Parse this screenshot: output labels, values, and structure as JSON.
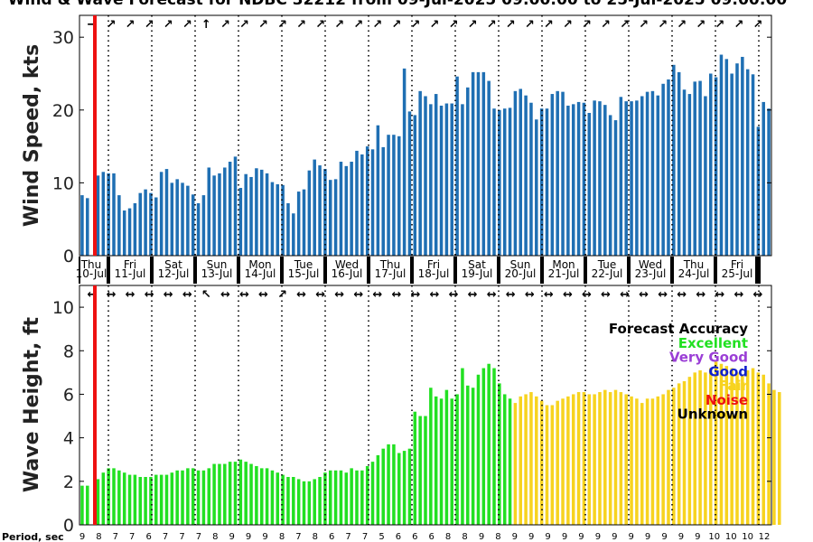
{
  "chart_data": [
    {
      "type": "bar",
      "title": "Wind & Wave Forecast for NDBC 32212 from 09-Jul-2025 09:00:00 to 25-Jul-2025 09:00:00",
      "ylabel": "Wind Speed, kts",
      "ylim": [
        0,
        33
      ],
      "yticks": [
        0,
        10,
        20,
        30
      ],
      "bar_color": "#1f6fb3",
      "day_labels": [
        {
          "dow": "Thu",
          "date": "10-Jul"
        },
        {
          "dow": "Fri",
          "date": "11-Jul"
        },
        {
          "dow": "Sat",
          "date": "12-Jul"
        },
        {
          "dow": "Sun",
          "date": "13-Jul"
        },
        {
          "dow": "Mon",
          "date": "14-Jul"
        },
        {
          "dow": "Tue",
          "date": "15-Jul"
        },
        {
          "dow": "Wed",
          "date": "16-Jul"
        },
        {
          "dow": "Thu",
          "date": "17-Jul"
        },
        {
          "dow": "Fri",
          "date": "18-Jul"
        },
        {
          "dow": "Sat",
          "date": "19-Jul"
        },
        {
          "dow": "Sun",
          "date": "20-Jul"
        },
        {
          "dow": "Mon",
          "date": "21-Jul"
        },
        {
          "dow": "Tue",
          "date": "22-Jul"
        },
        {
          "dow": "Wed",
          "date": "23-Jul"
        },
        {
          "dow": "Thu",
          "date": "24-Jul"
        },
        {
          "dow": "Fri",
          "date": "25-Jul"
        }
      ],
      "values": [
        8.3,
        7.9,
        0,
        11.0,
        11.5,
        11.3,
        11.3,
        8.3,
        6.2,
        6.5,
        7.2,
        8.6,
        9.1,
        8.6,
        8.0,
        11.5,
        11.9,
        10.0,
        10.5,
        10.0,
        9.6,
        8.4,
        7.2,
        8.3,
        12.1,
        11.0,
        11.3,
        12.1,
        12.9,
        13.6,
        9.3,
        11.2,
        10.8,
        12.0,
        11.8,
        11.3,
        10.1,
        9.8,
        9.7,
        7.2,
        5.8,
        8.8,
        9.1,
        11.7,
        13.2,
        12.4,
        11.9,
        10.4,
        10.5,
        12.9,
        12.3,
        12.9,
        14.4,
        13.9,
        15.0,
        14.6,
        17.9,
        14.9,
        16.6,
        16.6,
        16.4,
        25.7,
        19.8,
        19.3,
        22.6,
        21.9,
        20.8,
        22.2,
        20.6,
        20.9,
        20.9,
        24.6,
        20.8,
        23.1,
        25.2,
        25.2,
        25.2,
        24.0,
        20.2,
        20.0,
        20.2,
        20.3,
        22.6,
        22.9,
        22.0,
        21.0,
        18.7,
        20.2,
        20.2,
        22.2,
        22.6,
        22.5,
        20.6,
        20.8,
        21.1,
        21.0,
        19.6,
        21.3,
        21.2,
        20.7,
        19.3,
        18.6,
        21.8,
        21.2,
        21.2,
        21.3,
        21.9,
        22.5,
        22.6,
        22.0,
        23.6,
        24.2,
        26.2,
        25.2,
        22.8,
        22.2,
        23.9,
        24.0,
        21.9,
        25.0,
        24.5,
        27.6,
        27.0,
        25.0,
        26.4,
        27.3,
        25.6,
        24.9,
        17.7,
        21.1,
        20.2
      ],
      "direction_arrows": [
        "→",
        "↗",
        "↗",
        "↗",
        "↗",
        "↗",
        "↑",
        "↗",
        "↗",
        "↗",
        "↗",
        "↗",
        "↗",
        "↗",
        "↗",
        "↗",
        "↗",
        "↗",
        "↗",
        "↗",
        "↗",
        "↗",
        "↗",
        "↗",
        "↗",
        "↗",
        "↗",
        "↗",
        "↗",
        "↗",
        "↗",
        "↗",
        "↗",
        "↗",
        "↗",
        "↗"
      ]
    },
    {
      "type": "bar",
      "ylabel": "Wave Height, ft",
      "ylim": [
        0,
        11
      ],
      "yticks": [
        0,
        2,
        4,
        6,
        8,
        10
      ],
      "xlabel_period": "Period, sec",
      "values": [
        1.8,
        1.8,
        0,
        2.1,
        2.4,
        2.6,
        2.6,
        2.5,
        2.4,
        2.3,
        2.3,
        2.2,
        2.2,
        2.2,
        2.3,
        2.3,
        2.3,
        2.4,
        2.5,
        2.5,
        2.6,
        2.6,
        2.5,
        2.5,
        2.6,
        2.8,
        2.8,
        2.8,
        2.9,
        2.9,
        3.0,
        2.9,
        2.8,
        2.7,
        2.6,
        2.6,
        2.5,
        2.4,
        2.3,
        2.2,
        2.2,
        2.1,
        2.0,
        2.0,
        2.1,
        2.2,
        2.4,
        2.5,
        2.5,
        2.5,
        2.4,
        2.6,
        2.5,
        2.5,
        2.7,
        2.9,
        3.2,
        3.5,
        3.7,
        3.7,
        3.3,
        3.4,
        3.5,
        5.2,
        5.0,
        5.0,
        6.3,
        5.9,
        5.8,
        6.2,
        5.8,
        6.0,
        7.2,
        6.4,
        6.3,
        6.9,
        7.2,
        7.4,
        7.2,
        6.5,
        6.0,
        5.8,
        5.6,
        5.9,
        6.0,
        6.1,
        5.9,
        5.7,
        5.5,
        5.5,
        5.7,
        5.8,
        5.9,
        6.0,
        6.1,
        6.1,
        6.0,
        6.0,
        6.1,
        6.2,
        6.1,
        6.2,
        6.1,
        6.0,
        5.9,
        5.8,
        5.6,
        5.8,
        5.8,
        5.9,
        6.0,
        6.2,
        6.3,
        6.5,
        6.6,
        6.8,
        7.0,
        7.1,
        7.0,
        7.2,
        7.5,
        7.4,
        7.3,
        7.2,
        7.0,
        6.9,
        7.1,
        7.2,
        7.0,
        6.9,
        6.5,
        6.2,
        6.1
      ],
      "accuracy_colors": {
        "excellent": "#22e022",
        "very_good": "#9b3fd6",
        "good": "#1020cc",
        "fair": "#f7d31f",
        "noise": "#ee1111",
        "unknown": "#000000"
      },
      "accuracy_split": [
        57,
        82
      ],
      "direction_arrows": [
        "←",
        "↔",
        "↔",
        "↔",
        "↔",
        "↔",
        "↖",
        "↔",
        "↔",
        "↔",
        "↗",
        "↔",
        "↔",
        "↔",
        "↔",
        "↔",
        "↔",
        "↔",
        "↔",
        "↔",
        "↔",
        "↔",
        "↔",
        "↔",
        "↔",
        "↔",
        "↔",
        "↔",
        "↔",
        "↔",
        "↔",
        "↔",
        "↔",
        "↔",
        "↔",
        "↔"
      ],
      "period_labels": [
        "9",
        "8",
        "7",
        "7",
        "6",
        "7",
        "7",
        "7",
        "8",
        "9",
        "9",
        "9",
        "8",
        "7",
        "8",
        "6",
        "7",
        "7",
        "5",
        "6",
        "6",
        "6",
        "8",
        "8",
        "9",
        "8",
        "9",
        "9",
        "9",
        "9",
        "9",
        "9",
        "9",
        "9",
        "9",
        "9",
        "9",
        "9",
        "10",
        "10",
        "10",
        "12"
      ],
      "legend": {
        "title": "Forecast Accuracy",
        "items": [
          {
            "label": "Excellent",
            "color": "#22e022"
          },
          {
            "label": "Very Good",
            "color": "#9b3fd6"
          },
          {
            "label": "Good",
            "color": "#1020cc"
          },
          {
            "label": "Fair",
            "color": "#f7d31f"
          },
          {
            "label": "Noise",
            "color": "#ee1111"
          },
          {
            "label": "Unknown",
            "color": "#000000"
          }
        ]
      }
    }
  ],
  "now_line_color": "#ee1111"
}
